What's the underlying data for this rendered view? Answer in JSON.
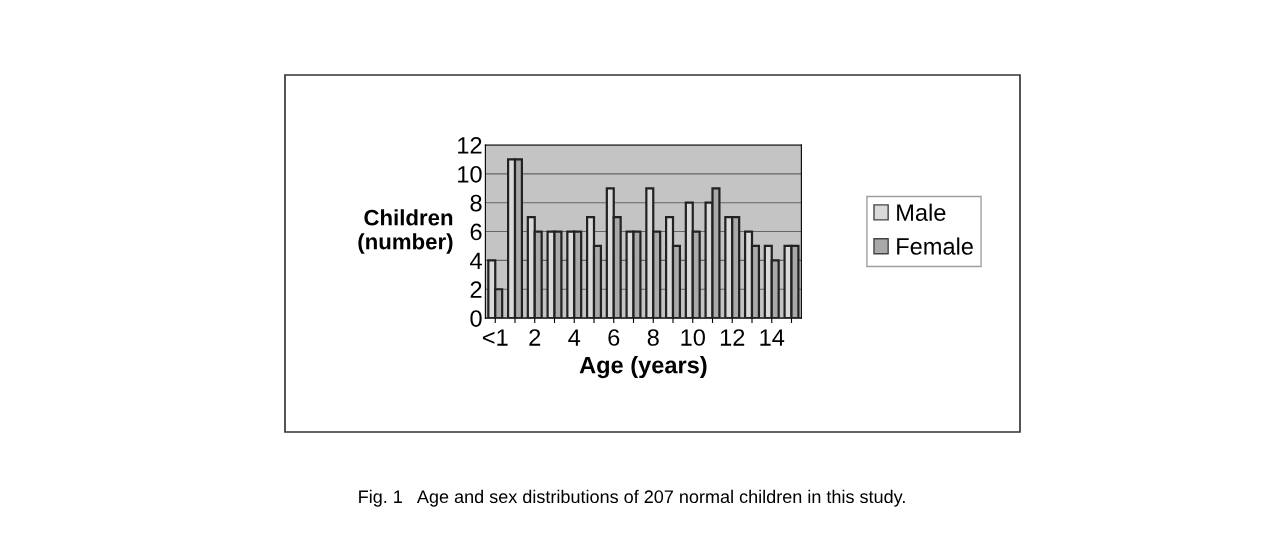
{
  "chart_data": {
    "type": "bar",
    "categories": [
      "<1",
      null,
      "2",
      null,
      "4",
      null,
      "6",
      null,
      "8",
      null,
      "10",
      null,
      "12",
      null,
      "14",
      null
    ],
    "series": [
      {
        "name": "Male",
        "color": "#dadada",
        "values": [
          4,
          11,
          7,
          6,
          6,
          7,
          9,
          6,
          9,
          7,
          8,
          8,
          7,
          6,
          5,
          5
        ]
      },
      {
        "name": "Female",
        "color": "#a9a9a9",
        "values": [
          2,
          11,
          6,
          6,
          6,
          5,
          7,
          6,
          6,
          5,
          6,
          9,
          7,
          5,
          4,
          5
        ]
      }
    ],
    "xlabel": "Age (years)",
    "ylabel": "Children\n(number)",
    "ylim": [
      0,
      12
    ],
    "yticks": [
      0,
      2,
      4,
      6,
      8,
      10,
      12
    ],
    "grid": "y",
    "legend": "right",
    "annotations": [
      "Fig. 1   Age and sex distributions of 207 normal children in this study."
    ]
  }
}
